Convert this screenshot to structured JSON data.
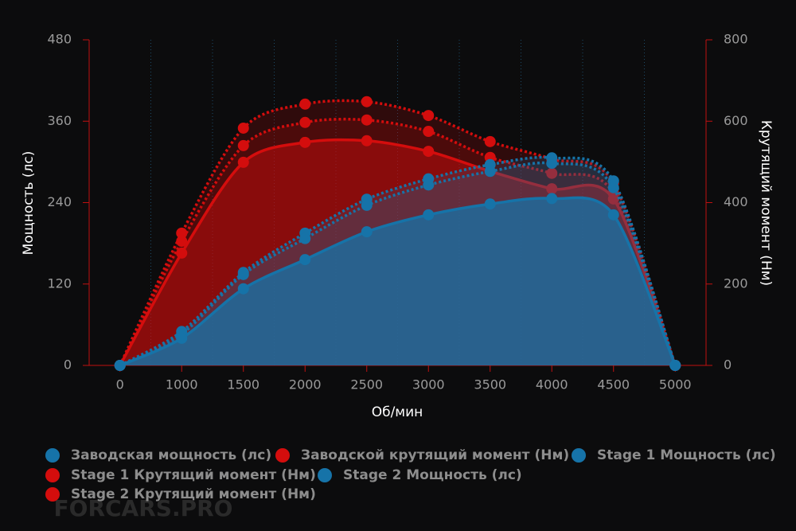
{
  "chart_data": {
    "type": "line",
    "watermark": "FORCARS.PRO",
    "x_label": "Об/мин",
    "y_label": "Мощность (лс)",
    "y2_label": "Крутящий момент (Нм)",
    "categories": [
      "0",
      "1000",
      "1500",
      "2000",
      "2500",
      "3000",
      "3500",
      "4000",
      "4500",
      "5000"
    ],
    "ylim": [
      0,
      480
    ],
    "yticks": [
      0,
      120,
      240,
      360,
      480
    ],
    "y2lim": [
      0,
      800
    ],
    "y2ticks": [
      0,
      200,
      400,
      600,
      800
    ],
    "series": [
      {
        "name": "Заводская мощность (лс)",
        "color": "#1673a8",
        "style": "solid",
        "axis": "y",
        "values": [
          0,
          40,
          113,
          156,
          197,
          222,
          238,
          246,
          222,
          0
        ]
      },
      {
        "name": "Заводской крутящий момент (Нм)",
        "color": "#d40d0d",
        "style": "solid",
        "axis": "y2",
        "values": [
          0,
          276,
          499,
          548,
          552,
          526,
          477,
          434,
          409,
          0
        ]
      },
      {
        "name": "Stage 1 Мощность (лс)",
        "color": "#1673a8",
        "style": "dotted",
        "axis": "y",
        "values": [
          0,
          46,
          134,
          187,
          236,
          266,
          286,
          298,
          262,
          0
        ]
      },
      {
        "name": "Stage 1 Крутящий момент (Нм)",
        "color": "#d40d0d",
        "style": "dotted",
        "axis": "y2",
        "values": [
          0,
          305,
          540,
          597,
          603,
          575,
          511,
          472,
          423,
          0
        ]
      },
      {
        "name": "Stage 2 Мощность (лс)",
        "color": "#1673a8",
        "style": "dotted",
        "axis": "y",
        "values": [
          0,
          50,
          137,
          195,
          245,
          275,
          296,
          306,
          272,
          0
        ]
      },
      {
        "name": "Stage 2 Крутящий момент (Нм)",
        "color": "#d40d0d",
        "style": "dotted",
        "axis": "y2",
        "values": [
          0,
          325,
          583,
          642,
          648,
          614,
          550,
          507,
          448,
          0
        ]
      }
    ]
  }
}
